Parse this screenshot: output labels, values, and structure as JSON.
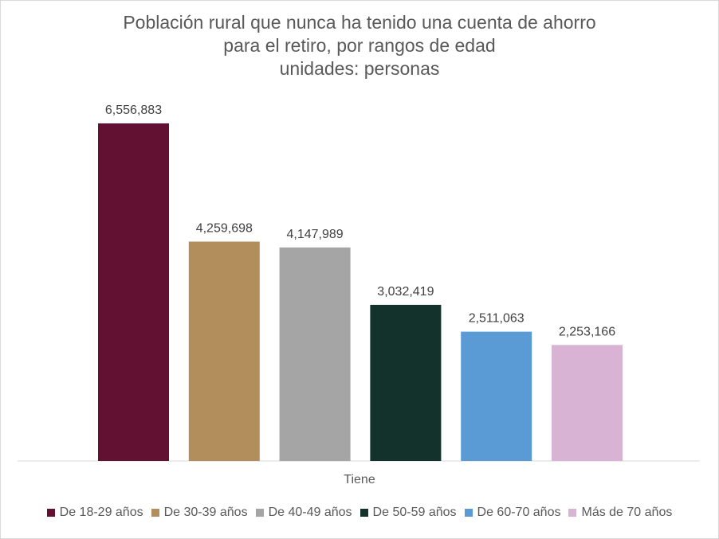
{
  "chart_data": {
    "type": "bar",
    "title_lines": [
      "Población rural que nunca ha tenido una cuenta de ahorro",
      "para el retiro, por rangos de edad",
      "unidades: personas"
    ],
    "categories": [
      "Tiene"
    ],
    "ylim": [
      0,
      7000000
    ],
    "grid": false,
    "legend_position": "bottom",
    "series": [
      {
        "name": "De 18-29 años",
        "values": [
          6556883
        ],
        "label": "6,556,883",
        "color": "#621132"
      },
      {
        "name": "De 30-39 años",
        "values": [
          4259698
        ],
        "label": "4,259,698",
        "color": "#B38E5D"
      },
      {
        "name": "De 40-49 años",
        "values": [
          4147989
        ],
        "label": "4,147,989",
        "color": "#A5A5A5"
      },
      {
        "name": "De 50-59 años",
        "values": [
          3032419
        ],
        "label": "3,032,419",
        "color": "#13322B"
      },
      {
        "name": "De 60-70 años",
        "values": [
          2511063
        ],
        "label": "2,511,063",
        "color": "#5B9BD5"
      },
      {
        "name": "Más de 70 años",
        "values": [
          2253166
        ],
        "label": "2,253,166",
        "color": "#D9B3D3"
      }
    ]
  }
}
